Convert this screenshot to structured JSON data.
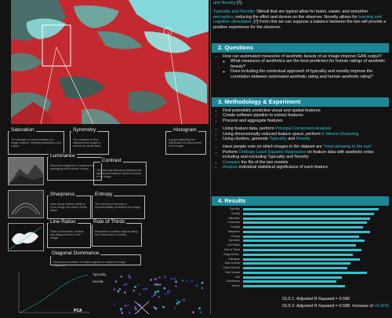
{
  "intro": {
    "lead_link": "and Novelty",
    "lead_tail": " [7].",
    "l1_a": "Typicality and Novelty",
    "l1_b": ": Stimuli that are typical allow for faster, easier, and smoother ",
    "l1_c": "perception",
    "l1_d": ", reducing the effort and duress on the observer. Novelty allows for ",
    "l1_e": "learning and cognitive stimulation",
    "l1_f": ". [7] From this we can suppose a balance between the two will provide a positive experience for the observer."
  },
  "questions": {
    "header": "2. Questions",
    "main": "How can automated measures of aesthetic beauty of an image improve GAN output?",
    "sub1": "What measures of aesthetics are the best predictors for human ratings of aesthetic beauty?",
    "sub2": "Does including the contextual approach of typicality and novelty improve the correlation between automated aesthetic rating and human aesthetic rating?"
  },
  "methods": {
    "header": "3. Methodology & Experiment",
    "b1": "Find potentially predictive visual and spatial features",
    "b2": "Create software pipeline to extract features",
    "b3": "Process and aggregate features",
    "b4_a": "Using feature data, perform ",
    "b4_b": "Principal Component Analysis",
    "b5_a": "Using dimensionally reduced feature space, perform ",
    "b5_b": "K-Means Clustering",
    "b6_a": "Using clusters, generate ",
    "b6_b": "Typicality",
    "b6_c": " and ",
    "b6_d": "Novelty",
    "b7_a": "Have people vote on which images in the dataset are ",
    "b7_b": "\"most pleasing to the eye\"",
    "b8_a": "Perform ",
    "b8_b": "Ordinary Least Squares Regression",
    "b8_c": " on feature data with aesthetic votes including and excluding Typicality and Novelty",
    "b9_a": "Compare",
    "b9_b": " the fits of the two models",
    "b10_a": "Analyze",
    "b10_b": " individual statistical significance of each feature"
  },
  "results": {
    "header": "4. Results",
    "bars": [
      {
        "label": "Typicality",
        "value": 0.96
      },
      {
        "label": "Novelty",
        "value": 0.93
      },
      {
        "label": "Saturation",
        "value": 0.9
      },
      {
        "label": "Luminance",
        "value": 0.88
      },
      {
        "label": "Contrast",
        "value": 0.85
      },
      {
        "label": "Sharpness",
        "value": 0.9
      },
      {
        "label": "Entropy",
        "value": 0.82
      },
      {
        "label": "Symmetry",
        "value": 0.86
      },
      {
        "label": "Line Ratios",
        "value": 0.8
      },
      {
        "label": "Rule of Thirds",
        "value": 0.84
      },
      {
        "label": "Diagonal Dom.",
        "value": 0.78
      },
      {
        "label": "Histogram",
        "value": 0.83
      },
      {
        "label": "Blue Channel",
        "value": 0.76
      },
      {
        "label": "Green Channel",
        "value": 0.74
      },
      {
        "label": "Red Channel",
        "value": 0.88
      },
      {
        "label": "Hue",
        "value": 0.7
      },
      {
        "label": "Colorfulness",
        "value": 0.66
      },
      {
        "label": "Texture",
        "value": 0.72
      }
    ],
    "ols1": "OLS 1: Adjusted R-Squared = 0.596",
    "ols2": "OLS 2: Adjusted R-Squared = 0.598",
    "increase_label": "Increase of ",
    "increase_value": "+0.31%"
  },
  "features": {
    "saturation": {
      "label": "Saturation",
      "desc": "The strength of colour relative to a single channel. Intensity distribution of a colour."
    },
    "symmetry": {
      "label": "Symmetry",
      "desc": "The measure of how balanced the image is around its centre axes."
    },
    "histogram": {
      "label": "Histogram",
      "desc": "A graph depicting the distribution of colour tones in an image."
    },
    "luminance": {
      "label": "Luminance",
      "desc": "Perceived brightness, measured by averaging all the pixels' values."
    },
    "contrast": {
      "label": "Contrast",
      "desc": "The intensity difference between the lightest and darkest values of pixels in an image."
    },
    "sharpness": {
      "label": "Sharpness",
      "desc": "How clearly defined detail is in an image; the extent of fine detail."
    },
    "entropy": {
      "label": "Entropy",
      "desc": "The amount of disorder or unpredictability of detail in the image."
    },
    "line_ratios": {
      "label": "Line Ratios",
      "desc": "Ratio of horizontal, vertical and diagonal lines in the image."
    },
    "rule_of_thirds": {
      "label": "Rule of Thirds",
      "desc": "Placement of salient objects along the intersections of thirds."
    },
    "diagonal": {
      "label": "Diagonal Dominance",
      "desc": "Emphasized position of salient objects in relation to image diagonals."
    }
  },
  "bottom": {
    "typicality_legend": "Typicality",
    "novelty_legend": "Novelty",
    "pca_label": "PCA"
  },
  "colors": {
    "accent": "#35c2d0",
    "header": "#1d8796",
    "sat_red": "#c8262e",
    "water": "#7fd8de"
  }
}
